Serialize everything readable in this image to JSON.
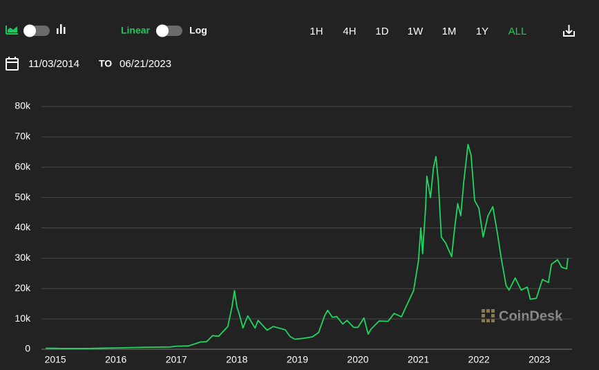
{
  "controls": {
    "scale_linear": "Linear",
    "scale_log": "Log",
    "ranges": [
      {
        "label": "1H",
        "active": false
      },
      {
        "label": "4H",
        "active": false
      },
      {
        "label": "1D",
        "active": false
      },
      {
        "label": "1W",
        "active": false
      },
      {
        "label": "1M",
        "active": false
      },
      {
        "label": "1Y",
        "active": false
      },
      {
        "label": "ALL",
        "active": true
      }
    ]
  },
  "date_range": {
    "from": "11/03/2014",
    "to_label": "TO",
    "to": "06/21/2023"
  },
  "watermark": "CoinDesk",
  "chart_data": {
    "type": "line",
    "color": "#1ed760",
    "x": [
      2014.84,
      2015.0,
      2015.1,
      2015.5,
      2015.85,
      2016.0,
      2016.5,
      2016.9,
      2017.0,
      2017.2,
      2017.4,
      2017.5,
      2017.6,
      2017.7,
      2017.85,
      2017.92,
      2017.96,
      2018.0,
      2018.04,
      2018.1,
      2018.18,
      2018.3,
      2018.35,
      2018.5,
      2018.6,
      2018.8,
      2018.88,
      2018.96,
      2019.1,
      2019.25,
      2019.35,
      2019.45,
      2019.5,
      2019.58,
      2019.65,
      2019.75,
      2019.82,
      2019.93,
      2020.0,
      2020.1,
      2020.17,
      2020.22,
      2020.35,
      2020.5,
      2020.6,
      2020.72,
      2020.83,
      2020.92,
      2021.0,
      2021.04,
      2021.07,
      2021.12,
      2021.14,
      2021.2,
      2021.25,
      2021.29,
      2021.33,
      2021.38,
      2021.45,
      2021.55,
      2021.6,
      2021.65,
      2021.7,
      2021.75,
      2021.82,
      2021.87,
      2021.93,
      2022.0,
      2022.07,
      2022.15,
      2022.23,
      2022.3,
      2022.37,
      2022.45,
      2022.5,
      2022.6,
      2022.7,
      2022.8,
      2022.85,
      2022.95,
      2023.05,
      2023.15,
      2023.2,
      2023.3,
      2023.37,
      2023.45,
      2023.47
    ],
    "values": [
      350,
      320,
      240,
      260,
      380,
      430,
      650,
      750,
      1000,
      1100,
      2400,
      2500,
      4500,
      4300,
      7500,
      14000,
      19300,
      14000,
      11500,
      7000,
      11000,
      7000,
      9500,
      6300,
      7500,
      6400,
      4200,
      3300,
      3600,
      4100,
      5500,
      11000,
      12800,
      10500,
      10800,
      8300,
      9500,
      7200,
      7200,
      10300,
      5000,
      6700,
      9300,
      9200,
      11800,
      10700,
      15500,
      19300,
      29000,
      40000,
      31500,
      47000,
      57000,
      50000,
      60000,
      63500,
      55000,
      37000,
      35000,
      30500,
      40000,
      48000,
      44000,
      55000,
      67500,
      64000,
      49000,
      46500,
      37000,
      44000,
      47000,
      39000,
      30000,
      21000,
      19500,
      23500,
      19500,
      20500,
      16500,
      16800,
      23000,
      22000,
      28000,
      29500,
      27000,
      26500,
      30000
    ],
    "xlim": [
      2014.77,
      2023.54
    ],
    "xticks": [
      2015,
      2016,
      2017,
      2018,
      2019,
      2020,
      2021,
      2022,
      2023
    ],
    "ylim": [
      0,
      80000
    ],
    "yticks": [
      {
        "value": 0,
        "label": "0"
      },
      {
        "value": 10000,
        "label": "10k"
      },
      {
        "value": 20000,
        "label": "20k"
      },
      {
        "value": 30000,
        "label": "30k"
      },
      {
        "value": 40000,
        "label": "40k"
      },
      {
        "value": 50000,
        "label": "50k"
      },
      {
        "value": 60000,
        "label": "60k"
      },
      {
        "value": 70000,
        "label": "70k"
      },
      {
        "value": 80000,
        "label": "80k"
      }
    ],
    "grid": true
  }
}
